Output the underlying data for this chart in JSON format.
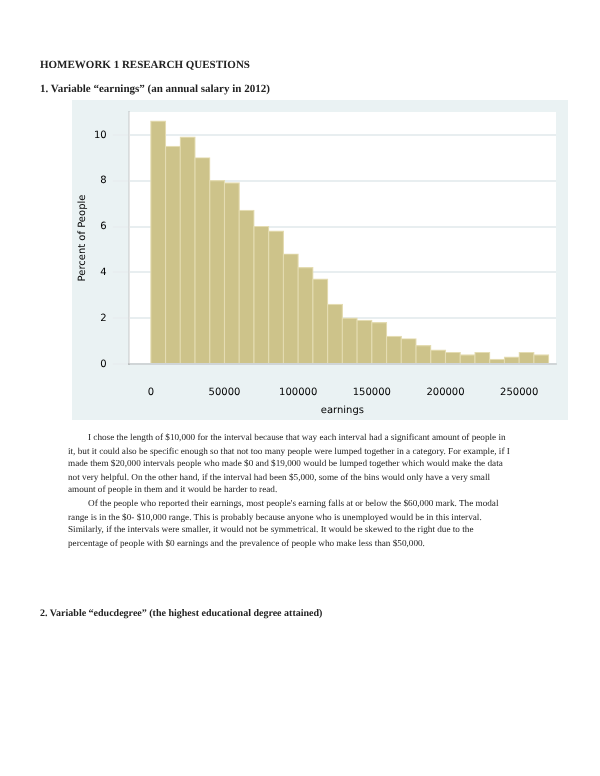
{
  "chart_data": {
    "type": "histogram",
    "title": "HOMEWORK 1 RESEARCH QUESTIONS",
    "subtitle": "1. Variable “earnings” (an annual salary in 2012)",
    "xlabel": "earnings",
    "ylabel": "Percent of People",
    "bins": [
      0,
      10000,
      20000,
      30000,
      40000,
      50000,
      60000,
      70000,
      80000,
      90000,
      100000,
      110000,
      120000,
      130000,
      140000,
      150000,
      160000,
      170000,
      180000,
      190000,
      200000,
      210000,
      220000,
      230000,
      240000,
      250000,
      260000,
      270000
    ],
    "values": [
      10.6,
      9.5,
      9.9,
      9.0,
      8.0,
      7.9,
      6.7,
      6.0,
      5.8,
      4.8,
      4.2,
      3.7,
      2.6,
      2.0,
      1.9,
      1.8,
      1.2,
      1.1,
      0.8,
      0.6,
      0.5,
      0.4,
      0.5,
      0.2,
      0.3,
      0.5,
      0.4
    ],
    "color": "#cdc38a",
    "xlim": [
      -15000,
      275000
    ],
    "ylim": [
      0,
      11
    ],
    "xticks": [
      0,
      50000,
      100000,
      150000,
      200000,
      250000
    ],
    "yticks": [
      0,
      2,
      4,
      6,
      8,
      10
    ],
    "grid": "y",
    "annotations": [
      "I chose the length of $10,000 for the interval because that way each interval had a significant amount of people in it, but it could also be specific enough so that not too many people were lumped together in a category. For example, if I made them $20,000 intervals people who made $0 and $19,000 would be lumped together which would make the data not very helpful. On the other hand, if the interval had been $5,000, some of the bins would only have a very small amount of people in them and it would be harder to read.",
      "Of the people who reported their earnings, most people's earning falls at or below the $60,000 mark. The modal range is in the $0- $10,000 range. This is probably because anyone who is unemployed would be in this interval. Similarly, if the intervals were smaller, it would not be symmetrical. It would be skewed to the right due to the percentage of people with $0 earnings and the prevalence of people who make less than $50,000.",
      "2. Variable “educdegree” (the highest educational degree attained)"
    ]
  }
}
